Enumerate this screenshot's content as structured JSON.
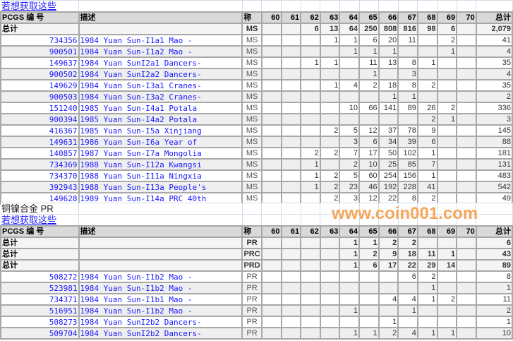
{
  "colors": {
    "link": "#1a1aff",
    "header_bg": "#d9d9d9",
    "watermark": "#f6a65b"
  },
  "headers": {
    "pcgs": "PCGS 编 号",
    "desc": "描述",
    "grade": "称",
    "grades": [
      "60",
      "61",
      "62",
      "63",
      "64",
      "65",
      "66",
      "67",
      "68",
      "69",
      "70"
    ],
    "total": "总计"
  },
  "section1": {
    "link": "若想获取这些",
    "totals": [
      {
        "label": "总计",
        "grade": "MS",
        "counts": [
          "",
          "",
          "6",
          "13",
          "64",
          "250",
          "808",
          "816",
          "98",
          "6",
          ""
        ],
        "total": "2,079"
      }
    ],
    "rows": [
      {
        "pcgs": "734356",
        "desc": "1984 Yuan Sun-I1a1 Mao -",
        "grade": "MS",
        "counts": [
          "",
          "",
          "",
          "1",
          "1",
          "6",
          "20",
          "11",
          "",
          "2",
          ""
        ],
        "total": "41"
      },
      {
        "pcgs": "900501",
        "desc": "1984 Yuan Sun-I1a2 Mao -",
        "grade": "MS",
        "counts": [
          "",
          "",
          "",
          "",
          "1",
          "1",
          "1",
          "",
          "",
          "1",
          ""
        ],
        "total": "4"
      },
      {
        "pcgs": "149637",
        "desc": "1984 Yuan SunI2a1 Dancers-",
        "grade": "MS",
        "counts": [
          "",
          "",
          "1",
          "1",
          "",
          "11",
          "13",
          "8",
          "1",
          "",
          ""
        ],
        "total": "35"
      },
      {
        "pcgs": "900502",
        "desc": "1984 Yuan SunI2a2 Dancers-",
        "grade": "MS",
        "counts": [
          "",
          "",
          "",
          "",
          "",
          "1",
          "",
          "3",
          "",
          "",
          ""
        ],
        "total": "4"
      },
      {
        "pcgs": "149629",
        "desc": "1984 Yuan Sun-I3a1 Cranes-",
        "grade": "MS",
        "counts": [
          "",
          "",
          "",
          "1",
          "4",
          "2",
          "18",
          "8",
          "2",
          "",
          ""
        ],
        "total": "35"
      },
      {
        "pcgs": "900503",
        "desc": "1984 Yuan Sun-I3a2 Cranes-",
        "grade": "MS",
        "counts": [
          "",
          "",
          "",
          "",
          "",
          "",
          "1",
          "1",
          "",
          "",
          ""
        ],
        "total": "2"
      },
      {
        "pcgs": "151240",
        "desc": "1985 Yuan Sun-I4a1 Potala",
        "grade": "MS",
        "counts": [
          "",
          "",
          "",
          "",
          "10",
          "66",
          "141",
          "89",
          "26",
          "2",
          ""
        ],
        "total": "336"
      },
      {
        "pcgs": "900394",
        "desc": "1985 Yuan Sun-I4a2 Potala",
        "grade": "MS",
        "counts": [
          "",
          "",
          "",
          "",
          "",
          "",
          "",
          "",
          "2",
          "1",
          ""
        ],
        "total": "3"
      },
      {
        "pcgs": "416367",
        "desc": "1985 Yuan Sun-I5a Xinjiang",
        "grade": "MS",
        "counts": [
          "",
          "",
          "",
          "2",
          "5",
          "12",
          "37",
          "78",
          "9",
          "",
          ""
        ],
        "total": "145"
      },
      {
        "pcgs": "149631",
        "desc": "1986 Yuan Sun-I6a Year of",
        "grade": "MS",
        "counts": [
          "",
          "",
          "",
          "",
          "3",
          "6",
          "34",
          "39",
          "6",
          "",
          ""
        ],
        "total": "88"
      },
      {
        "pcgs": "140857",
        "desc": "1987 Yuan Sun-I7a Mongolia",
        "grade": "MS",
        "counts": [
          "",
          "",
          "2",
          "2",
          "7",
          "17",
          "50",
          "102",
          "1",
          "",
          ""
        ],
        "total": "181"
      },
      {
        "pcgs": "734369",
        "desc": "1988 Yuan Sun-I12a Kwangsi",
        "grade": "MS",
        "counts": [
          "",
          "",
          "1",
          "",
          "2",
          "10",
          "25",
          "85",
          "7",
          "",
          ""
        ],
        "total": "131"
      },
      {
        "pcgs": "734370",
        "desc": "1988 Yuan Sun-I11a Ningxia",
        "grade": "MS",
        "counts": [
          "",
          "",
          "1",
          "2",
          "5",
          "60",
          "254",
          "156",
          "1",
          "",
          ""
        ],
        "total": "483"
      },
      {
        "pcgs": "392943",
        "desc": "1988 Yuan Sun-I13a People's",
        "grade": "MS",
        "counts": [
          "",
          "",
          "1",
          "2",
          "23",
          "46",
          "192",
          "228",
          "41",
          "",
          ""
        ],
        "total": "542"
      },
      {
        "pcgs": "149628",
        "desc": "1989 Yuan Sun-I14a PRC 40th",
        "grade": "MS",
        "counts": [
          "",
          "",
          "",
          "2",
          "3",
          "12",
          "22",
          "8",
          "2",
          "",
          ""
        ],
        "total": "49"
      }
    ]
  },
  "section2": {
    "caption": "铜镍合金  PR",
    "link": "若想获取这些",
    "totals": [
      {
        "label": "总计",
        "grade": "PR",
        "counts": [
          "",
          "",
          "",
          "",
          "1",
          "1",
          "2",
          "2",
          "",
          "",
          ""
        ],
        "total": "6"
      },
      {
        "label": "总计",
        "grade": "PRC",
        "counts": [
          "",
          "",
          "",
          "",
          "1",
          "2",
          "9",
          "18",
          "11",
          "1",
          ""
        ],
        "total": "43"
      },
      {
        "label": "总计",
        "grade": "PRD",
        "counts": [
          "",
          "",
          "",
          "",
          "1",
          "6",
          "17",
          "22",
          "29",
          "14",
          ""
        ],
        "total": "89"
      }
    ],
    "rows": [
      {
        "pcgs": "508272",
        "desc": "1984 Yuan Sun-I1b2 Mao -",
        "grade": "PR",
        "counts": [
          "",
          "",
          "",
          "",
          "",
          "",
          "",
          "6",
          "2",
          "",
          ""
        ],
        "total": "8"
      },
      {
        "pcgs": "523981",
        "desc": "1984 Yuan Sun-I1b2 Mao -",
        "grade": "PR",
        "counts": [
          "",
          "",
          "",
          "",
          "",
          "",
          "",
          "",
          "1",
          "",
          ""
        ],
        "total": "1"
      },
      {
        "pcgs": "734371",
        "desc": "1984 Yuan Sun-I1b1 Mao -",
        "grade": "PR",
        "counts": [
          "",
          "",
          "",
          "",
          "",
          "",
          "4",
          "4",
          "1",
          "2",
          ""
        ],
        "total": "11"
      },
      {
        "pcgs": "516951",
        "desc": "1984 Yuan Sun-I1b2 Mao -",
        "grade": "PR",
        "counts": [
          "",
          "",
          "",
          "",
          "1",
          "",
          "",
          "1",
          "",
          "",
          ""
        ],
        "total": "2"
      },
      {
        "pcgs": "508273",
        "desc": "1984 Yuan SunI2b2 Dancers-",
        "grade": "PR",
        "counts": [
          "",
          "",
          "",
          "",
          "",
          "",
          "1",
          "",
          "",
          "",
          ""
        ],
        "total": "1"
      },
      {
        "pcgs": "509704",
        "desc": "1984 Yuan SunI2b2 Dancers-",
        "grade": "PR",
        "counts": [
          "",
          "",
          "",
          "",
          "1",
          "1",
          "2",
          "4",
          "1",
          "1",
          ""
        ],
        "total": "10"
      }
    ]
  },
  "watermark": "www.coin001.com"
}
